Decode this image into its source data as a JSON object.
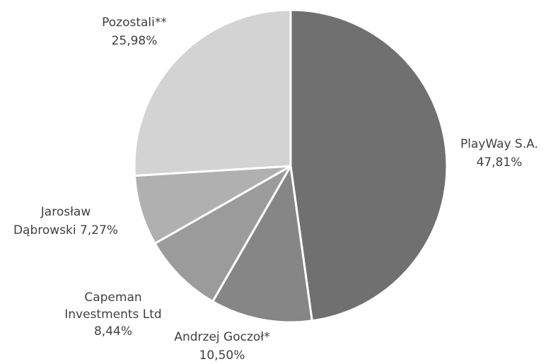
{
  "chart_data": {
    "type": "pie",
    "start_angle_deg": 0,
    "direction": "clockwise",
    "slices": [
      {
        "name": "PlayWay S.A.",
        "value": 47.81,
        "value_label": "47,81%",
        "color": "#707070"
      },
      {
        "name": "Andrzej Goczoł*",
        "value": 10.5,
        "value_label": "10,50%",
        "color": "#868686"
      },
      {
        "name": "Capeman Investments Ltd",
        "value": 8.44,
        "value_label": "8,44%",
        "color": "#9b9b9b"
      },
      {
        "name": "Jarosław Dąbrowski",
        "value": 7.27,
        "value_label": "7,27%",
        "color": "#b0b0b0"
      },
      {
        "name": "Pozostali**",
        "value": 25.98,
        "value_label": "25,98%",
        "color": "#d3d3d3"
      }
    ],
    "labels": [
      {
        "lines": [
          "PlayWay S.A.",
          "47,81%"
        ],
        "anchor": "middle"
      },
      {
        "lines": [
          "Andrzej Goczoł*",
          "10,50%"
        ],
        "anchor": "middle"
      },
      {
        "lines": [
          "Capeman",
          "Investments Ltd",
          "8,44%"
        ],
        "anchor": "middle"
      },
      {
        "lines": [
          "Jarosław",
          "Dąbrowski 7,27%"
        ],
        "anchor": "middle"
      },
      {
        "lines": [
          "Pozostali**",
          "25,98%"
        ],
        "anchor": "middle"
      }
    ]
  }
}
